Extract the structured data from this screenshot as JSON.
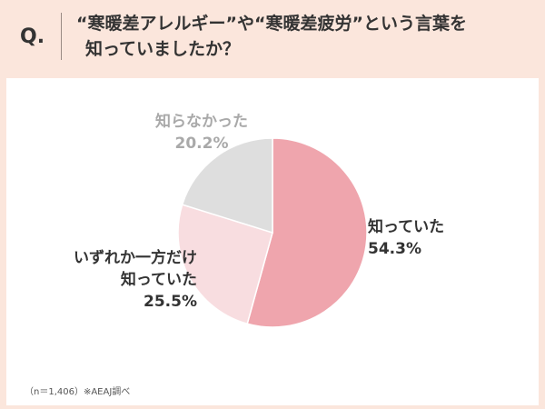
{
  "question": {
    "mark": "Q.",
    "line1": "“寒暖差アレルギー”や“寒暖差疲労”という言葉を",
    "line2": "知っていましたか？"
  },
  "note": "（n＝1,406）※AEAJ調べ",
  "colors": {
    "background": "#fbe6dc",
    "knew": "#efa5ad",
    "either": "#f8dde0",
    "not_known": "#dedede"
  },
  "chart_data": {
    "type": "pie",
    "slices": [
      {
        "label": "知っていた",
        "value": 54.3,
        "value_label": "54.3%",
        "color": "#efa5ad"
      },
      {
        "label": "いずれか一方だけ知っていた",
        "label_line1": "いずれか一方だけ",
        "label_line2": "知っていた",
        "value": 25.5,
        "value_label": "25.5%",
        "color": "#f8dde0"
      },
      {
        "label": "知らなかった",
        "value": 20.2,
        "value_label": "20.2%",
        "color": "#dedede"
      }
    ],
    "start": "top",
    "direction": "clockwise"
  }
}
